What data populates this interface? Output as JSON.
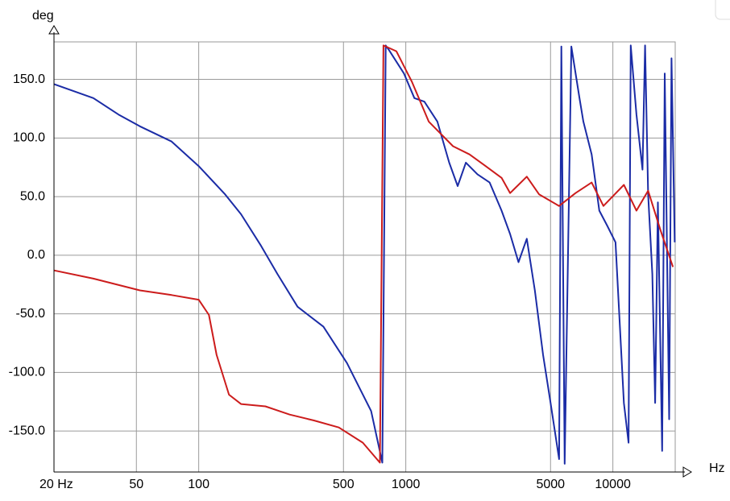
{
  "chart_data": {
    "type": "line",
    "y_label": "deg",
    "x_label": "Hz",
    "xscale": "log",
    "grid": true,
    "xlim": [
      20,
      20000
    ],
    "ylim": [
      -185,
      182
    ],
    "xticks": [
      {
        "value": 20,
        "label": "20 Hz"
      },
      50,
      100,
      500,
      1000,
      5000,
      10000
    ],
    "yticks": [
      {
        "value": 150,
        "label": "150.0"
      },
      {
        "value": 100,
        "label": "100.0"
      },
      {
        "value": 50,
        "label": "50.0"
      },
      {
        "value": 0,
        "label": "0.0"
      },
      {
        "value": -50,
        "label": "-50.0"
      },
      {
        "value": -100,
        "label": "-100.0"
      },
      {
        "value": -150,
        "label": "-150.0"
      }
    ],
    "series": [
      {
        "color": "#1b2ca6",
        "x": [
          20,
          31,
          41,
          52,
          74,
          100,
          134,
          160,
          200,
          240,
          300,
          400,
          520,
          680,
          770,
          800,
          830,
          980,
          1100,
          1230,
          1420,
          1620,
          1780,
          1950,
          2220,
          2540,
          2900,
          3190,
          3500,
          3840,
          4200,
          4600,
          5000,
          5500,
          5640,
          5850,
          6300,
          6900,
          7200,
          7900,
          8600,
          9400,
          10300,
          11300,
          11900,
          12200,
          13000,
          13900,
          14300,
          14800,
          15500,
          16000,
          16500,
          17300,
          17800,
          18700,
          19200,
          19900
        ],
        "values": [
          146,
          134,
          120,
          110,
          97,
          76,
          52,
          35,
          8,
          -16,
          -44,
          -61,
          -92,
          -133,
          -177,
          179,
          175,
          155,
          134,
          131,
          114,
          79,
          59,
          79,
          69,
          62,
          38,
          18,
          -6,
          14,
          -30,
          -85,
          -126,
          -174,
          178,
          -178,
          178,
          134,
          114,
          86,
          38,
          25,
          11,
          -126,
          -160,
          179,
          120,
          73,
          179,
          52,
          -16,
          -126,
          45,
          -167,
          155,
          -140,
          168,
          11
        ]
      },
      {
        "color": "#cc1c1c",
        "x": [
          20,
          31,
          52,
          74,
          100,
          112,
          122,
          140,
          160,
          210,
          275,
          360,
          475,
          620,
          750,
          780,
          900,
          1070,
          1290,
          1690,
          2030,
          2430,
          2900,
          3190,
          3840,
          4400,
          5500,
          6600,
          7900,
          9000,
          11300,
          13000,
          14800,
          17000,
          19500
        ],
        "values": [
          -13,
          -20,
          -30,
          -34,
          -38,
          -51,
          -85,
          -119,
          -127,
          -129,
          -136,
          -141,
          -147,
          -160,
          -177,
          179,
          174,
          148,
          114,
          93,
          86,
          76,
          66,
          53,
          67,
          52,
          42,
          53,
          62,
          42,
          60,
          38,
          55,
          21,
          -10
        ]
      }
    ]
  }
}
